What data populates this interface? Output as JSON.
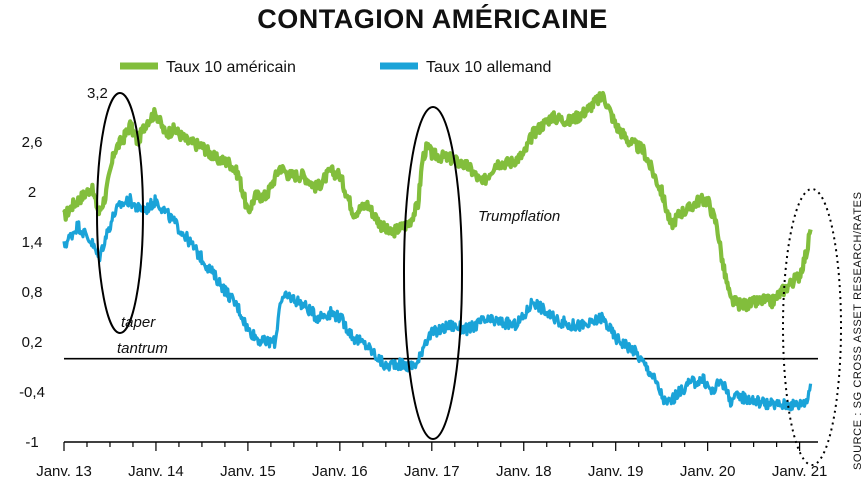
{
  "chart_data": {
    "type": "line",
    "title": "CONTAGION AMÉRICAINE",
    "source": "SOURCE : SG CROSS ASSET RESEARCH/RATES",
    "yticks": [
      2.6,
      2,
      1.4,
      0.8,
      0.2,
      -0.4,
      -1
    ],
    "ytick_labels": [
      "2,6",
      "2",
      "1,4",
      "0,8",
      "0,2",
      "-0,4",
      "-1"
    ],
    "ylim": [
      -1,
      3.2
    ],
    "xlim": [
      2013.0,
      2021.2
    ],
    "xticks": [
      2013,
      2014,
      2015,
      2016,
      2017,
      2018,
      2019,
      2020,
      2021
    ],
    "xtick_labels": [
      "Janv. 13",
      "Janv. 14",
      "Janv. 15",
      "Janv. 16",
      "Janv. 17",
      "Janv. 18",
      "Janv. 19",
      "Janv. 20",
      "Janv. 21"
    ],
    "baseline": 0,
    "grid": false,
    "legend_position": "top",
    "colors": {
      "us": "#82be3c",
      "de": "#1aa3d8"
    },
    "annotations": [
      "3,2",
      "taper",
      "tantrum",
      "Trumpflation"
    ],
    "series": [
      {
        "name": "Taux 10 américain",
        "color": "#82be3c",
        "x": [
          2013.0,
          2013.1,
          2013.2,
          2013.3,
          2013.38,
          2013.45,
          2013.55,
          2013.65,
          2013.72,
          2013.8,
          2013.9,
          2014.0,
          2014.1,
          2014.2,
          2014.35,
          2014.5,
          2014.65,
          2014.8,
          2014.9,
          2015.0,
          2015.08,
          2015.2,
          2015.35,
          2015.45,
          2015.6,
          2015.75,
          2015.9,
          2016.0,
          2016.15,
          2016.3,
          2016.45,
          2016.55,
          2016.62,
          2016.75,
          2016.85,
          2016.9,
          2016.95,
          2017.0,
          2017.2,
          2017.4,
          2017.55,
          2017.7,
          2017.85,
          2018.0,
          2018.1,
          2018.3,
          2018.5,
          2018.65,
          2018.8,
          2018.87,
          2019.0,
          2019.15,
          2019.3,
          2019.5,
          2019.6,
          2019.7,
          2019.8,
          2019.9,
          2020.0,
          2020.1,
          2020.17,
          2020.25,
          2020.35,
          2020.45,
          2020.6,
          2020.7,
          2020.8,
          2020.9,
          2021.0,
          2021.08,
          2021.12
        ],
        "values": [
          1.7,
          1.85,
          1.95,
          2.05,
          1.75,
          1.95,
          2.5,
          2.65,
          2.8,
          2.6,
          2.85,
          2.95,
          2.7,
          2.75,
          2.6,
          2.55,
          2.4,
          2.35,
          2.2,
          1.75,
          1.95,
          1.95,
          2.3,
          2.2,
          2.2,
          2.05,
          2.25,
          2.2,
          1.75,
          1.85,
          1.6,
          1.5,
          1.55,
          1.62,
          1.85,
          2.4,
          2.55,
          2.45,
          2.4,
          2.3,
          2.1,
          2.35,
          2.35,
          2.45,
          2.7,
          2.9,
          2.85,
          2.95,
          3.1,
          3.15,
          2.8,
          2.6,
          2.5,
          2.0,
          1.6,
          1.75,
          1.8,
          1.9,
          1.9,
          1.6,
          1.1,
          0.7,
          0.65,
          0.65,
          0.7,
          0.68,
          0.8,
          0.9,
          1.0,
          1.3,
          1.55
        ]
      },
      {
        "name": "Taux 10  allemand",
        "color": "#1aa3d8",
        "x": [
          2013.0,
          2013.15,
          2013.3,
          2013.38,
          2013.45,
          2013.55,
          2013.62,
          2013.72,
          2013.8,
          2013.9,
          2014.0,
          2014.15,
          2014.3,
          2014.5,
          2014.7,
          2014.9,
          2015.0,
          2015.15,
          2015.3,
          2015.35,
          2015.45,
          2015.6,
          2015.75,
          2015.9,
          2016.0,
          2016.15,
          2016.3,
          2016.5,
          2016.6,
          2016.75,
          2016.85,
          2016.92,
          2017.0,
          2017.2,
          2017.4,
          2017.55,
          2017.7,
          2017.9,
          2018.0,
          2018.1,
          2018.3,
          2018.5,
          2018.7,
          2018.85,
          2019.0,
          2019.2,
          2019.4,
          2019.55,
          2019.65,
          2019.8,
          2019.95,
          2020.05,
          2020.15,
          2020.25,
          2020.35,
          2020.5,
          2020.7,
          2020.85,
          2021.0,
          2021.08,
          2021.12
        ],
        "values": [
          1.35,
          1.6,
          1.4,
          1.2,
          1.45,
          1.75,
          1.85,
          1.9,
          1.8,
          1.8,
          1.9,
          1.7,
          1.5,
          1.2,
          0.9,
          0.6,
          0.35,
          0.2,
          0.2,
          0.7,
          0.75,
          0.65,
          0.5,
          0.55,
          0.5,
          0.25,
          0.15,
          -0.1,
          -0.05,
          -0.1,
          -0.05,
          0.2,
          0.3,
          0.4,
          0.35,
          0.45,
          0.45,
          0.4,
          0.5,
          0.7,
          0.5,
          0.4,
          0.4,
          0.5,
          0.25,
          0.1,
          -0.2,
          -0.55,
          -0.45,
          -0.3,
          -0.25,
          -0.4,
          -0.25,
          -0.5,
          -0.45,
          -0.5,
          -0.55,
          -0.55,
          -0.55,
          -0.5,
          -0.3
        ]
      }
    ]
  }
}
